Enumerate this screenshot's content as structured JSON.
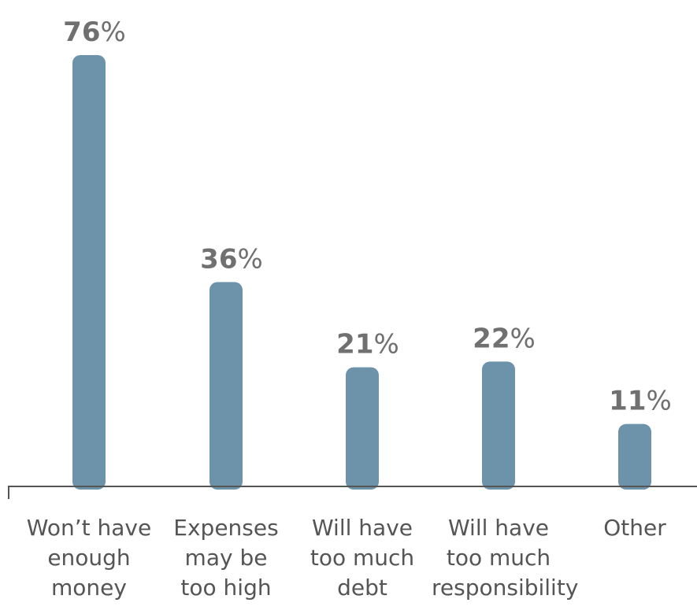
{
  "chart_data": {
    "type": "bar",
    "categories": [
      [
        "Won’t have",
        "enough",
        "money"
      ],
      [
        "Expenses",
        "may be",
        "too high"
      ],
      [
        "Will have",
        "too much",
        "debt"
      ],
      [
        "Will have",
        "too much",
        "responsibility"
      ],
      [
        "Other"
      ]
    ],
    "values": [
      76,
      36,
      21,
      22,
      11
    ],
    "value_labels": [
      {
        "number": "76",
        "unit": "%"
      },
      {
        "number": "36",
        "unit": "%"
      },
      {
        "number": "21",
        "unit": "%"
      },
      {
        "number": "22",
        "unit": "%"
      },
      {
        "number": "11",
        "unit": "%"
      }
    ],
    "bar_color": "#6d93ab",
    "label_color": "#707070",
    "axis_color": "#555555",
    "ylim": [
      0,
      76
    ]
  }
}
